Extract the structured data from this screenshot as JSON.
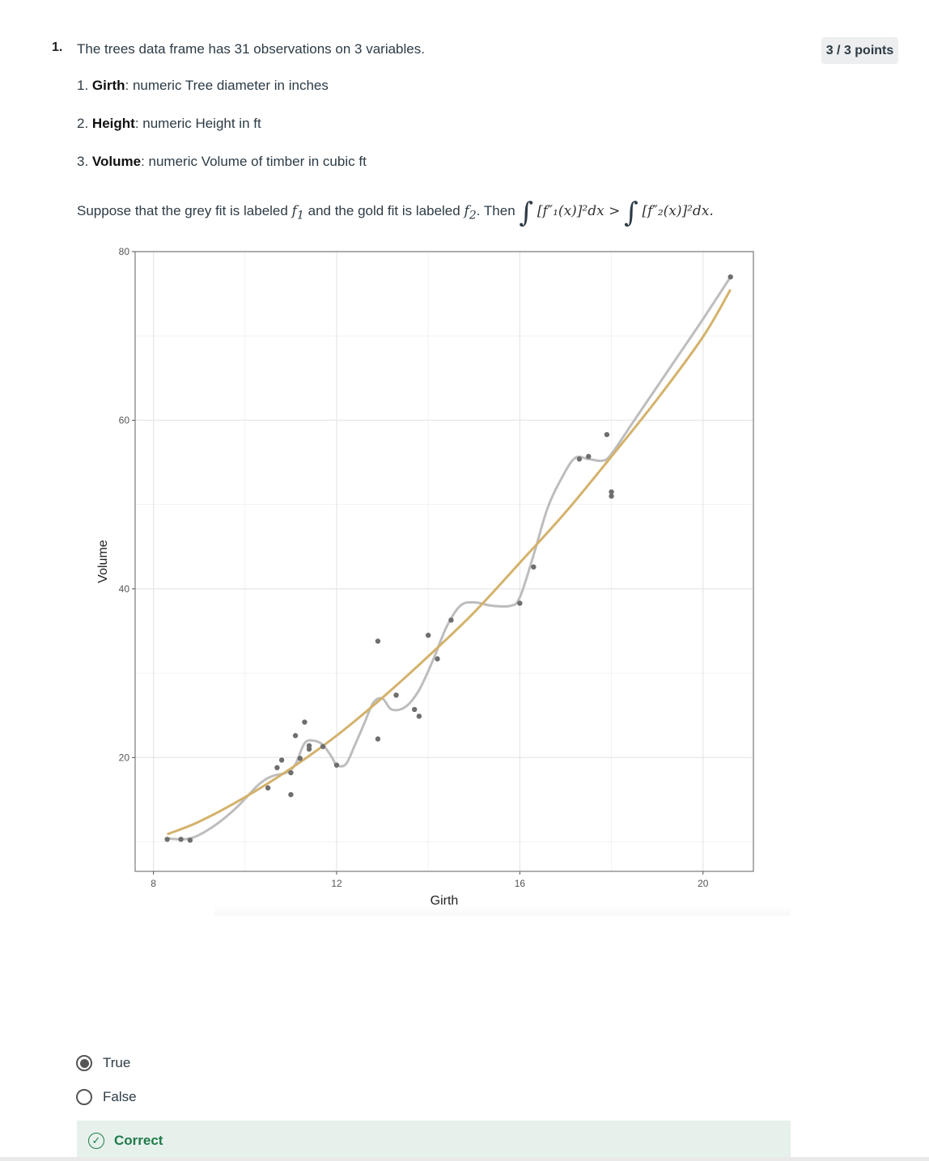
{
  "question": {
    "number": "1.",
    "intro": "The trees data frame has 31 observations on 3 variables.",
    "points": "3 / 3 points",
    "variables": [
      {
        "index": "1.",
        "name": "Girth",
        "desc": ": numeric Tree diameter in inches"
      },
      {
        "index": "2.",
        "name": "Height",
        "desc": ": numeric Height in ft"
      },
      {
        "index": "3.",
        "name": "Volume",
        "desc": ": numeric Volume of timber in cubic ft"
      }
    ],
    "statement_part1": "Suppose that the grey fit is labeled",
    "f1": "f",
    "f1_sub": "1",
    "statement_part2": "and the gold fit is labeled",
    "f2": "f",
    "f2_sub": "2",
    "statement_part3": ". Then",
    "formula_left": "[f″₁(x)]²dx >",
    "formula_right": "[f″₂(x)]²dx.",
    "integral_symbol": "∫"
  },
  "answers": {
    "options": [
      {
        "label": "True",
        "selected": true
      },
      {
        "label": "False",
        "selected": false
      }
    ]
  },
  "feedback": {
    "text": "Correct",
    "icon": "check-circle-icon",
    "color": "#1f7a49"
  },
  "chart_data": {
    "type": "scatter",
    "xlabel": "Girth",
    "ylabel": "Volume",
    "xlim": [
      7.6,
      21.1
    ],
    "ylim": [
      6.5,
      80
    ],
    "xticks": [
      8,
      12,
      16,
      20
    ],
    "yticks": [
      20,
      40,
      60,
      80
    ],
    "grid": true,
    "points": [
      [
        8.3,
        10.3
      ],
      [
        8.6,
        10.3
      ],
      [
        8.8,
        10.2
      ],
      [
        10.5,
        16.4
      ],
      [
        10.7,
        18.8
      ],
      [
        10.8,
        19.7
      ],
      [
        11.0,
        15.6
      ],
      [
        11.0,
        18.2
      ],
      [
        11.1,
        22.6
      ],
      [
        11.2,
        19.9
      ],
      [
        11.3,
        24.2
      ],
      [
        11.4,
        21.0
      ],
      [
        11.4,
        21.4
      ],
      [
        11.7,
        21.3
      ],
      [
        12.0,
        19.1
      ],
      [
        12.9,
        22.2
      ],
      [
        12.9,
        33.8
      ],
      [
        13.3,
        27.4
      ],
      [
        13.7,
        25.7
      ],
      [
        13.8,
        24.9
      ],
      [
        14.0,
        34.5
      ],
      [
        14.2,
        31.7
      ],
      [
        14.5,
        36.3
      ],
      [
        16.0,
        38.3
      ],
      [
        16.3,
        42.6
      ],
      [
        17.3,
        55.4
      ],
      [
        17.5,
        55.7
      ],
      [
        17.9,
        58.3
      ],
      [
        18.0,
        51.5
      ],
      [
        18.0,
        51.0
      ],
      [
        20.6,
        77.0
      ]
    ],
    "series": [
      {
        "color": "#bdbdbd",
        "x": [
          8.3,
          8.8,
          9.3,
          9.8,
          10.3,
          10.6,
          10.9,
          11.1,
          11.3,
          11.5,
          11.7,
          11.9,
          12.0,
          12.2,
          12.4,
          12.6,
          12.8,
          13.0,
          13.2,
          13.5,
          13.8,
          14.1,
          14.4,
          14.7,
          15.0,
          15.4,
          15.8,
          16.0,
          16.3,
          16.6,
          16.9,
          17.2,
          17.5,
          17.8,
          18.0,
          18.5,
          19.0,
          19.5,
          20.0,
          20.6
        ],
        "y": [
          10.4,
          10.4,
          11.8,
          14.0,
          16.8,
          17.8,
          18.2,
          19.2,
          21.7,
          22.0,
          21.5,
          20.0,
          19.1,
          19.2,
          21.5,
          24.0,
          26.5,
          27.0,
          25.7,
          26.0,
          28.0,
          31.5,
          35.5,
          38.0,
          38.4,
          38.0,
          38.0,
          39.0,
          44.0,
          49.5,
          53.0,
          55.5,
          55.4,
          55.2,
          56.0,
          60.0,
          64.0,
          68.0,
          72.0,
          77.0
        ]
      },
      {
        "color": "#d4b26b",
        "x": [
          8.3,
          9.0,
          10.0,
          11.0,
          12.0,
          13.0,
          14.0,
          15.0,
          16.0,
          17.0,
          18.0,
          19.0,
          20.0,
          20.6
        ],
        "y": [
          10.9,
          12.4,
          15.3,
          18.7,
          22.6,
          27.1,
          32.0,
          37.2,
          43.1,
          49.1,
          55.7,
          62.5,
          69.9,
          75.5
        ]
      }
    ]
  }
}
